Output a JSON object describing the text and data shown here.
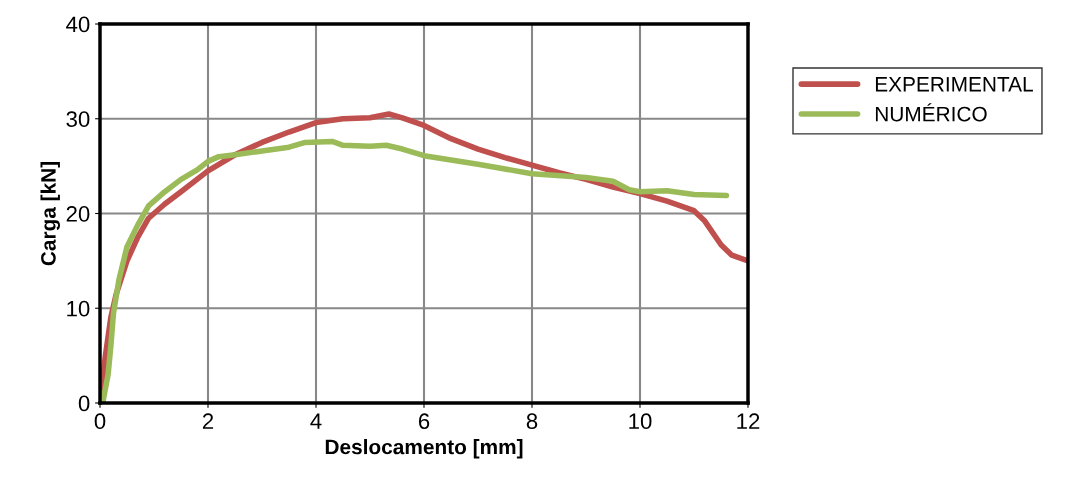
{
  "chart_data": {
    "type": "line",
    "xlabel": "Deslocamento [mm]",
    "ylabel": "Carga [kN]",
    "xlim": [
      0,
      12
    ],
    "ylim": [
      0,
      40
    ],
    "xticks": [
      0,
      2,
      4,
      6,
      8,
      10,
      12
    ],
    "yticks": [
      0,
      10,
      20,
      30,
      40
    ],
    "grid": true,
    "legend": "top right",
    "marker": "none",
    "line_style": "solid",
    "series": [
      {
        "name": "EXPERIMENTAL",
        "color": "#c0504d",
        "x": [
          0,
          0.1,
          0.2,
          0.3,
          0.5,
          0.7,
          0.9,
          1.2,
          1.5,
          2,
          2.5,
          3,
          3.5,
          4,
          4.5,
          5,
          5.35,
          5.6,
          6,
          6.5,
          7,
          7.5,
          8,
          8.5,
          9,
          9.5,
          10,
          10.5,
          11,
          11.2,
          11.5,
          11.7,
          12
        ],
        "values": [
          0,
          5,
          9,
          11.5,
          15,
          17.5,
          19.5,
          21,
          22.3,
          24.5,
          26.2,
          27.5,
          28.6,
          29.6,
          30,
          30.1,
          30.5,
          30.1,
          29.3,
          27.9,
          26.8,
          25.9,
          25.1,
          24.3,
          23.6,
          22.8,
          22.1,
          21.3,
          20.3,
          19.2,
          16.7,
          15.6,
          15
        ]
      },
      {
        "name": "NUMÉRICO",
        "color": "#9bbb59",
        "x": [
          0.05,
          0.15,
          0.2,
          0.25,
          0.35,
          0.5,
          0.7,
          0.9,
          1.2,
          1.5,
          1.8,
          2,
          2.2,
          2.5,
          3,
          3.5,
          3.8,
          4.3,
          4.5,
          5,
          5.3,
          5.6,
          6,
          7,
          8,
          9,
          9.5,
          9.8,
          10,
          10.5,
          11,
          11.6
        ],
        "values": [
          0,
          3,
          6,
          9.5,
          13,
          16.5,
          18.8,
          20.8,
          22.3,
          23.6,
          24.6,
          25.5,
          26,
          26.2,
          26.6,
          27,
          27.5,
          27.6,
          27.2,
          27.1,
          27.2,
          26.8,
          26.1,
          25.2,
          24.2,
          23.8,
          23.4,
          22.5,
          22.3,
          22.4,
          22,
          21.9
        ]
      }
    ]
  }
}
